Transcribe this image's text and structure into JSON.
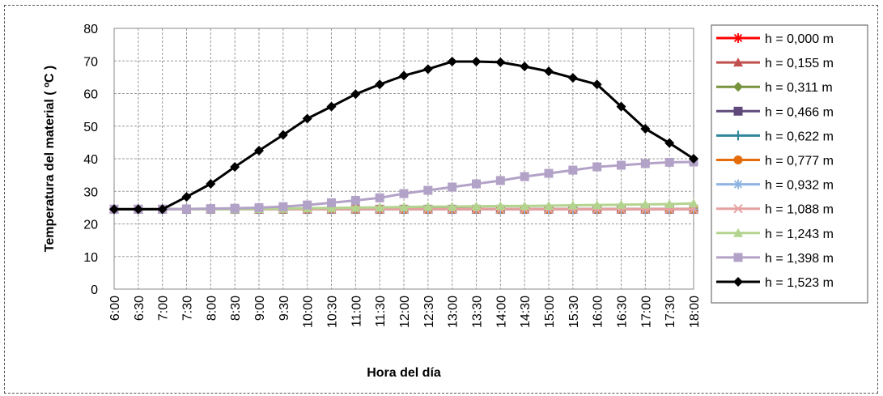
{
  "chart_data": {
    "type": "line",
    "xlabel": "Hora del día",
    "ylabel": "Temperatura del material ( ºC )",
    "ylim": [
      0,
      80
    ],
    "yticks": [
      0,
      10,
      20,
      30,
      40,
      50,
      60,
      70,
      80
    ],
    "grid": "dashed major gridlines on both axes",
    "legend_position": "right",
    "categories": [
      "6:00",
      "6:30",
      "7:00",
      "7:30",
      "8:00",
      "8:30",
      "9:00",
      "9:30",
      "10:00",
      "10:30",
      "11:00",
      "11:30",
      "12:00",
      "12:30",
      "13:00",
      "13:30",
      "14:00",
      "14:30",
      "15:00",
      "15:30",
      "16:00",
      "16:30",
      "17:00",
      "17:30",
      "18:00"
    ],
    "series": [
      {
        "name": "h = 0,000 m",
        "color": "#ff0000",
        "marker": "asterisk",
        "values": [
          24.5,
          24.5,
          24.5,
          24.5,
          24.5,
          24.5,
          24.5,
          24.5,
          24.5,
          24.5,
          24.5,
          24.5,
          24.5,
          24.5,
          24.5,
          24.5,
          24.5,
          24.5,
          24.5,
          24.5,
          24.5,
          24.5,
          24.5,
          24.5,
          24.5
        ]
      },
      {
        "name": "h = 0,155 m",
        "color": "#c0504d",
        "marker": "triangle",
        "values": [
          24.5,
          24.5,
          24.5,
          24.5,
          24.5,
          24.5,
          24.5,
          24.5,
          24.5,
          24.5,
          24.5,
          24.5,
          24.5,
          24.5,
          24.5,
          24.5,
          24.5,
          24.5,
          24.5,
          24.5,
          24.5,
          24.5,
          24.5,
          24.5,
          24.5
        ]
      },
      {
        "name": "h = 0,311 m",
        "color": "#77933c",
        "marker": "diamond",
        "values": [
          24.5,
          24.5,
          24.5,
          24.5,
          24.5,
          24.5,
          24.5,
          24.5,
          24.5,
          24.5,
          24.5,
          24.5,
          24.5,
          24.5,
          24.5,
          24.5,
          24.5,
          24.5,
          24.5,
          24.5,
          24.5,
          24.5,
          24.5,
          24.5,
          24.5
        ]
      },
      {
        "name": "h = 0,466 m",
        "color": "#604a7b",
        "marker": "square",
        "values": [
          24.5,
          24.5,
          24.5,
          24.5,
          24.5,
          24.5,
          24.5,
          24.5,
          24.5,
          24.5,
          24.5,
          24.5,
          24.5,
          24.5,
          24.5,
          24.5,
          24.5,
          24.5,
          24.5,
          24.5,
          24.5,
          24.5,
          24.5,
          24.5,
          24.5
        ]
      },
      {
        "name": "h = 0,622 m",
        "color": "#31859c",
        "marker": "plus",
        "values": [
          24.5,
          24.5,
          24.5,
          24.5,
          24.5,
          24.5,
          24.5,
          24.5,
          24.5,
          24.5,
          24.5,
          24.5,
          24.5,
          24.5,
          24.5,
          24.5,
          24.5,
          24.5,
          24.5,
          24.5,
          24.5,
          24.5,
          24.5,
          24.5,
          24.5
        ]
      },
      {
        "name": "h = 0,777 m",
        "color": "#e46c0a",
        "marker": "circle",
        "values": [
          24.5,
          24.5,
          24.5,
          24.5,
          24.5,
          24.5,
          24.5,
          24.5,
          24.5,
          24.5,
          24.5,
          24.5,
          24.5,
          24.5,
          24.5,
          24.5,
          24.5,
          24.5,
          24.5,
          24.5,
          24.5,
          24.5,
          24.5,
          24.5,
          24.5
        ]
      },
      {
        "name": "h = 0,932 m",
        "color": "#8eb4e3",
        "marker": "asterisk",
        "values": [
          24.5,
          24.5,
          24.5,
          24.5,
          24.5,
          24.5,
          24.5,
          24.5,
          24.5,
          24.5,
          24.5,
          24.5,
          24.5,
          24.5,
          24.5,
          24.5,
          24.5,
          24.5,
          24.5,
          24.5,
          24.5,
          24.5,
          24.5,
          24.5,
          24.5
        ]
      },
      {
        "name": "h = 1,088 m",
        "color": "#e6a0a0",
        "marker": "x",
        "values": [
          24.5,
          24.5,
          24.5,
          24.5,
          24.5,
          24.5,
          24.5,
          24.5,
          24.5,
          24.5,
          24.5,
          24.5,
          24.5,
          24.5,
          24.5,
          24.5,
          24.5,
          24.5,
          24.5,
          24.5,
          24.5,
          24.5,
          24.5,
          24.5,
          24.5
        ]
      },
      {
        "name": "h = 1,243 m",
        "color": "#b3d48e",
        "marker": "triangle",
        "values": [
          24.5,
          24.5,
          24.5,
          24.5,
          24.5,
          24.5,
          24.6,
          24.7,
          24.8,
          24.9,
          25.0,
          25.1,
          25.2,
          25.3,
          25.3,
          25.4,
          25.5,
          25.5,
          25.6,
          25.7,
          25.8,
          25.9,
          26.0,
          26.1,
          26.3
        ]
      },
      {
        "name": "h = 1,398 m",
        "color": "#b3a2c7",
        "marker": "square",
        "values": [
          24.5,
          24.5,
          24.5,
          24.6,
          24.7,
          24.8,
          25.0,
          25.3,
          25.8,
          26.5,
          27.2,
          28.0,
          29.3,
          30.3,
          31.3,
          32.3,
          33.3,
          34.5,
          35.5,
          36.5,
          37.5,
          38.0,
          38.5,
          38.9,
          39.0
        ]
      },
      {
        "name": "h = 1,523 m",
        "color": "#000000",
        "marker": "diamond",
        "values": [
          24.5,
          24.5,
          24.5,
          28.3,
          32.3,
          37.5,
          42.5,
          47.3,
          52.3,
          56.0,
          59.8,
          62.8,
          65.5,
          67.5,
          69.8,
          69.8,
          69.6,
          68.3,
          66.8,
          64.8,
          62.8,
          56.0,
          49.2,
          44.8,
          40.0
        ]
      }
    ]
  }
}
